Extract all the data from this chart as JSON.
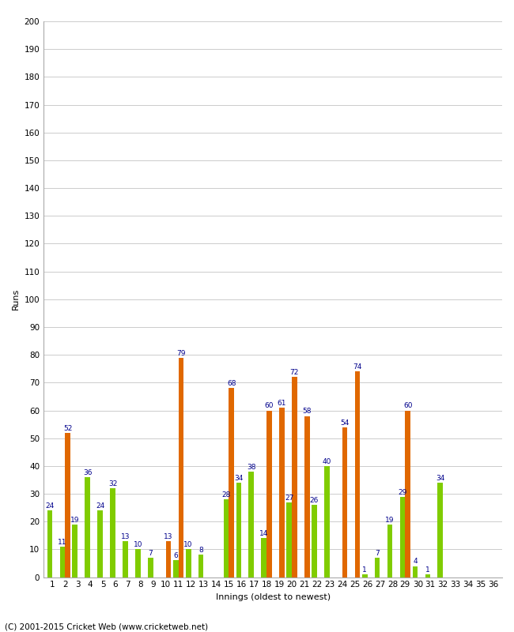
{
  "xlabel": "Innings (oldest to newest)",
  "ylabel": "Runs",
  "footer": "(C) 2001-2015 Cricket Web (www.cricketweb.net)",
  "ylim": [
    0,
    200
  ],
  "yticks": [
    0,
    10,
    20,
    30,
    40,
    50,
    60,
    70,
    80,
    90,
    100,
    110,
    120,
    130,
    140,
    150,
    160,
    170,
    180,
    190,
    200
  ],
  "innings": [
    1,
    2,
    3,
    4,
    5,
    6,
    7,
    8,
    9,
    10,
    11,
    12,
    13,
    14,
    15,
    16,
    17,
    18,
    19,
    20,
    21,
    22,
    23,
    24,
    25,
    26,
    27,
    28,
    29,
    30,
    31,
    32,
    33,
    34,
    35,
    36
  ],
  "green": [
    24,
    11,
    19,
    36,
    24,
    32,
    13,
    10,
    7,
    0,
    6,
    10,
    8,
    0,
    28,
    34,
    38,
    14,
    0,
    27,
    0,
    26,
    40,
    0,
    0,
    1,
    7,
    19,
    29,
    4,
    1,
    34,
    0,
    0,
    0,
    0
  ],
  "orange": [
    0,
    52,
    0,
    0,
    0,
    0,
    0,
    0,
    0,
    13,
    79,
    0,
    0,
    0,
    68,
    0,
    0,
    60,
    61,
    72,
    58,
    0,
    0,
    54,
    74,
    0,
    0,
    0,
    60,
    0,
    0,
    0,
    0,
    0,
    0,
    0
  ],
  "bar_color_green": "#80cc00",
  "bar_color_orange": "#e06800",
  "label_color": "#00008b",
  "background_color": "#ffffff",
  "grid_color": "#cccccc",
  "label_fontsize": 6.5,
  "tick_fontsize": 7.5,
  "axis_label_fontsize": 8,
  "footer_fontsize": 7.5
}
